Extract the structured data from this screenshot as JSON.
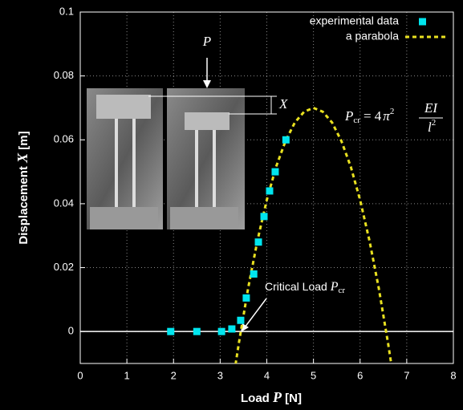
{
  "chart_data": {
    "type": "scatter",
    "x_label": {
      "text": "Load ",
      "symbol": "P",
      "unit": " [N]"
    },
    "y_label": {
      "text": "Displacement ",
      "symbol": "X",
      "unit": " [m]"
    },
    "xlim": [
      0,
      8
    ],
    "xticks": [
      0,
      1,
      2,
      3,
      4,
      5,
      6,
      7,
      8
    ],
    "ylim": [
      -0.01,
      0.1
    ],
    "yticks": [
      0,
      0.02,
      0.04,
      0.06,
      0.08,
      0.1
    ],
    "grid": true,
    "legend": "top-right",
    "series": [
      {
        "name": "experimental data",
        "type": "scatter",
        "color": "#00e5ee",
        "x": [
          1.94,
          2.5,
          3.03,
          3.25,
          3.44,
          3.56,
          3.72,
          3.82,
          3.94,
          4.06,
          4.18,
          4.41
        ],
        "values": [
          0,
          0,
          0,
          0.0008,
          0.0035,
          0.0105,
          0.018,
          0.028,
          0.036,
          0.044,
          0.05,
          0.06
        ]
      },
      {
        "name": "a parabola",
        "type": "line",
        "color": "#e8e020",
        "x": [
          3.33,
          3.4,
          3.6,
          3.8,
          4.0,
          4.2,
          4.4,
          4.6,
          4.8,
          5.0,
          5.2,
          5.4,
          5.6,
          5.8,
          6.0,
          6.2,
          6.4,
          6.6,
          6.67
        ],
        "values": [
          -0.0103,
          -0.0037,
          0.0136,
          0.0285,
          0.0412,
          0.0516,
          0.0596,
          0.0654,
          0.0688,
          0.07,
          0.0688,
          0.0654,
          0.0596,
          0.0516,
          0.0412,
          0.0285,
          0.0136,
          -0.0037,
          -0.0103
        ]
      }
    ],
    "annotations": {
      "critical_load": {
        "text": "Critical Load ",
        "symbol": "P",
        "sub": "cr"
      },
      "formula": {
        "lhs": "P",
        "lhs_sub": "cr",
        "rhs": "= 4",
        "pi": "π",
        "pi_exp": "2",
        "numerator": "EI",
        "denominator": "l",
        "den_exp": "2"
      },
      "photo_load": "P",
      "photo_displacement": "X"
    }
  }
}
